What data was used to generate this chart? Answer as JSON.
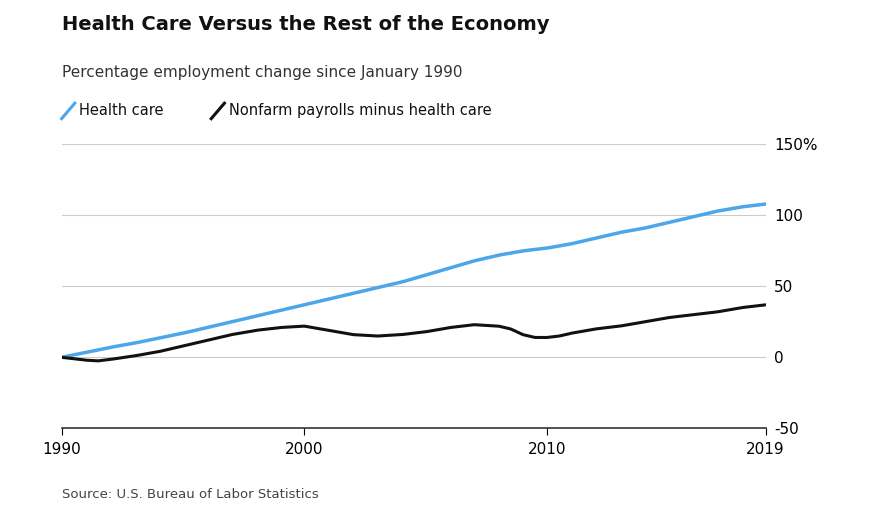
{
  "title": "Health Care Versus the Rest of the Economy",
  "subtitle": "Percentage employment change since January 1990",
  "legend": [
    "Health care",
    "Nonfarm payrolls minus health care"
  ],
  "source": "Source: U.S. Bureau of Labor Statistics",
  "xlim": [
    1990,
    2019
  ],
  "ylim": [
    -50,
    150
  ],
  "yticks": [
    -50,
    0,
    50,
    100,
    150
  ],
  "xticks": [
    1990,
    2000,
    2010,
    2019
  ],
  "health_care_color": "#4da6e8",
  "nonfarm_color": "#111111",
  "background_color": "#ffffff",
  "hc_interp_x": [
    1990,
    1991,
    1992,
    1993,
    1994,
    1995,
    1996,
    1997,
    1998,
    1999,
    2000,
    2001,
    2002,
    2003,
    2004,
    2005,
    2006,
    2007,
    2008,
    2009,
    2010,
    2011,
    2012,
    2013,
    2014,
    2015,
    2016,
    2017,
    2018,
    2019
  ],
  "hc_interp_y": [
    0,
    3.5,
    7,
    10,
    13.5,
    17,
    21,
    25,
    29,
    33,
    37,
    41,
    45,
    49,
    53,
    58,
    63,
    68,
    72,
    75,
    77,
    80,
    84,
    88,
    91,
    95,
    99,
    103,
    106,
    108
  ],
  "nf_interp_x": [
    1990,
    1991,
    1991.5,
    1992,
    1993,
    1994,
    1995,
    1996,
    1997,
    1998,
    1999,
    2000,
    2001,
    2002,
    2003,
    2004,
    2005,
    2006,
    2007,
    2008,
    2008.5,
    2009,
    2009.5,
    2010,
    2010.5,
    2011,
    2012,
    2013,
    2014,
    2015,
    2016,
    2017,
    2018,
    2019
  ],
  "nf_interp_y": [
    0,
    -2,
    -2.5,
    -1.5,
    1,
    4,
    8,
    12,
    16,
    19,
    21,
    22,
    19,
    16,
    15,
    16,
    18,
    21,
    23,
    22,
    20,
    16,
    14,
    14,
    15,
    17,
    20,
    22,
    25,
    28,
    30,
    32,
    35,
    37
  ]
}
